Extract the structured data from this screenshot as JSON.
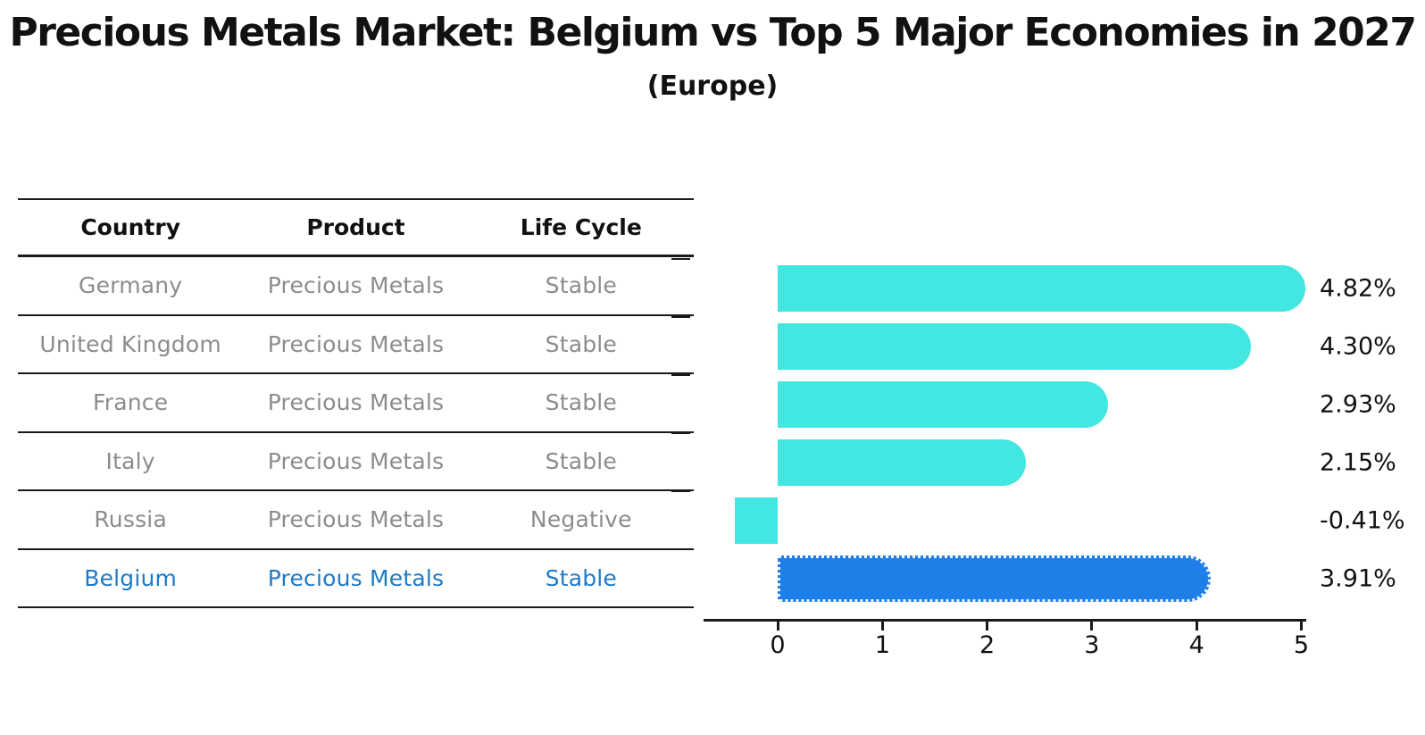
{
  "title": "Precious Metals Market: Belgium vs Top 5 Major Economies in 2027",
  "subtitle": "(Europe)",
  "table": {
    "headers": [
      "Country",
      "Product",
      "Life Cycle"
    ],
    "rows": [
      {
        "country": "Germany",
        "product": "Precious Metals",
        "life_cycle": "Stable",
        "highlight": false
      },
      {
        "country": "United Kingdom",
        "product": "Precious Metals",
        "life_cycle": "Stable",
        "highlight": false
      },
      {
        "country": "France",
        "product": "Precious Metals",
        "life_cycle": "Stable",
        "highlight": false
      },
      {
        "country": "Italy",
        "product": "Precious Metals",
        "life_cycle": "Stable",
        "highlight": false
      },
      {
        "country": "Russia",
        "product": "Precious Metals",
        "life_cycle": "Negative",
        "highlight": false
      },
      {
        "country": "Belgium",
        "product": "Precious Metals",
        "life_cycle": "Stable",
        "highlight": true
      }
    ]
  },
  "chart_data": {
    "type": "bar",
    "orientation": "horizontal",
    "title": "Precious Metals Market: Belgium vs Top 5 Major Economies in 2027",
    "subtitle": "(Europe)",
    "categories": [
      "Germany",
      "United Kingdom",
      "France",
      "Italy",
      "Russia",
      "Belgium"
    ],
    "values": [
      4.82,
      4.3,
      2.93,
      2.15,
      -0.41,
      3.91
    ],
    "value_labels": [
      "4.82%",
      "4.30%",
      "2.93%",
      "2.15%",
      "-0.41%",
      "3.91%"
    ],
    "highlight_index": 5,
    "highlight_category": "Belgium",
    "x_ticks": [
      0,
      1,
      2,
      3,
      4,
      5
    ],
    "xlim": [
      -0.71,
      5.05
    ],
    "grid": false,
    "legend": "none",
    "value_label_position": "right-outside",
    "bar_style": {
      "rounded_right_cap": true,
      "highlight_border": "dotted"
    }
  },
  "colors": {
    "bar": "#42e7e1",
    "highlight_bar": "#1e7fe8",
    "highlight_text": "#1e7ac8",
    "table_text": "#8c8c8c",
    "heading_text": "#111111",
    "line": "#1a1a1a",
    "background": "#ffffff"
  }
}
